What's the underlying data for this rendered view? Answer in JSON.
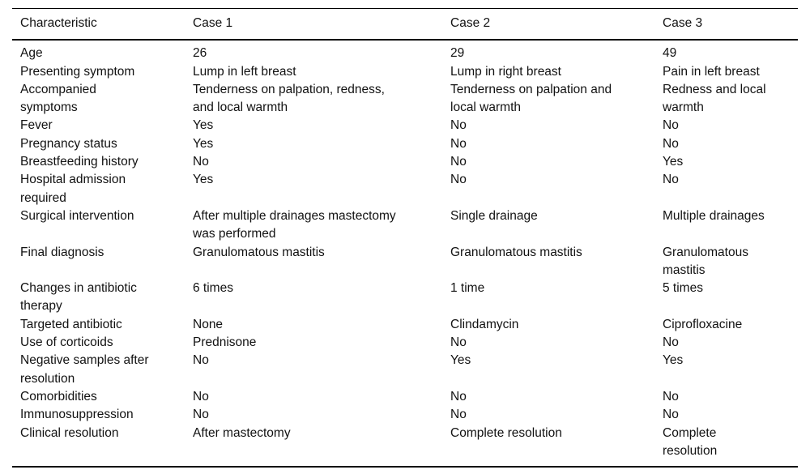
{
  "table": {
    "columns": [
      "Characteristic",
      "Case 1",
      "Case 2",
      "Case 3"
    ],
    "rows": [
      [
        "Age",
        "26",
        "29",
        "49"
      ],
      [
        "Presenting symptom",
        "Lump in left breast",
        "Lump in right breast",
        "Pain in left breast"
      ],
      [
        "Accompanied\nsymptoms",
        "Tenderness on palpation, redness,\nand local warmth",
        "Tenderness on palpation and\nlocal warmth",
        "Redness and local\nwarmth"
      ],
      [
        "Fever",
        "Yes",
        "No",
        "No"
      ],
      [
        "Pregnancy status",
        "Yes",
        "No",
        "No"
      ],
      [
        "Breastfeeding history",
        "No",
        "No",
        "Yes"
      ],
      [
        "Hospital admission\nrequired",
        "Yes",
        "No",
        "No"
      ],
      [
        "Surgical intervention",
        "After multiple drainages mastectomy\nwas performed",
        "Single drainage",
        "Multiple drainages"
      ],
      [
        "Final diagnosis",
        "Granulomatous mastitis",
        "Granulomatous mastitis",
        "Granulomatous\nmastitis"
      ],
      [
        "Changes in antibiotic\ntherapy",
        "6 times",
        "1 time",
        "5 times"
      ],
      [
        "Targeted antibiotic",
        "None",
        "Clindamycin",
        "Ciprofloxacine"
      ],
      [
        "Use of corticoids",
        "Prednisone",
        "No",
        "No"
      ],
      [
        "Negative samples after\nresolution",
        "No",
        "Yes",
        "Yes"
      ],
      [
        "Comorbidities",
        "No",
        "No",
        "No"
      ],
      [
        "Immunosuppression",
        "No",
        "No",
        "No"
      ],
      [
        "Clinical resolution",
        "After mastectomy",
        "Complete resolution",
        "Complete\nresolution"
      ]
    ]
  }
}
